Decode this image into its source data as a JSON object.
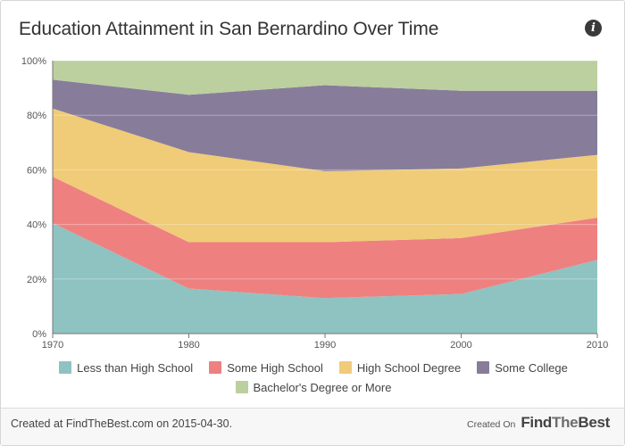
{
  "header": {
    "title": "Education Attainment in San Bernardino Over Time",
    "info_icon": "info-icon"
  },
  "chart_data": {
    "type": "area",
    "stacked": true,
    "percent": true,
    "x": [
      1970,
      1980,
      1990,
      2000,
      2010
    ],
    "x_tick_labels": [
      "1970",
      "1980",
      "1990",
      "2000",
      "2010"
    ],
    "y_tick_labels": [
      "0%",
      "20%",
      "40%",
      "60%",
      "80%",
      "100%"
    ],
    "ylim": [
      0,
      100
    ],
    "grid": true,
    "legend_position": "bottom",
    "series": [
      {
        "name": "Less than High School",
        "color": "#8ec3c1",
        "values": [
          40.5,
          16.5,
          13.0,
          14.5,
          27.0
        ]
      },
      {
        "name": "Some High School",
        "color": "#ef8080",
        "values": [
          17.0,
          17.0,
          20.5,
          20.5,
          15.5
        ]
      },
      {
        "name": "High School Degree",
        "color": "#f0cb78",
        "values": [
          25.0,
          33.0,
          26.0,
          25.5,
          23.0
        ]
      },
      {
        "name": "Some College",
        "color": "#877d9a",
        "values": [
          10.5,
          21.0,
          31.5,
          28.5,
          23.5
        ]
      },
      {
        "name": "Bachelor's Degree or More",
        "color": "#bccf9f",
        "values": [
          7.0,
          12.5,
          9.0,
          11.0,
          11.0
        ]
      }
    ]
  },
  "footer": {
    "created_text": "Created at FindTheBest.com on 2015-04-30.",
    "created_on_label": "Created On",
    "logo_find": "Find",
    "logo_the": "The",
    "logo_best": "Best"
  }
}
